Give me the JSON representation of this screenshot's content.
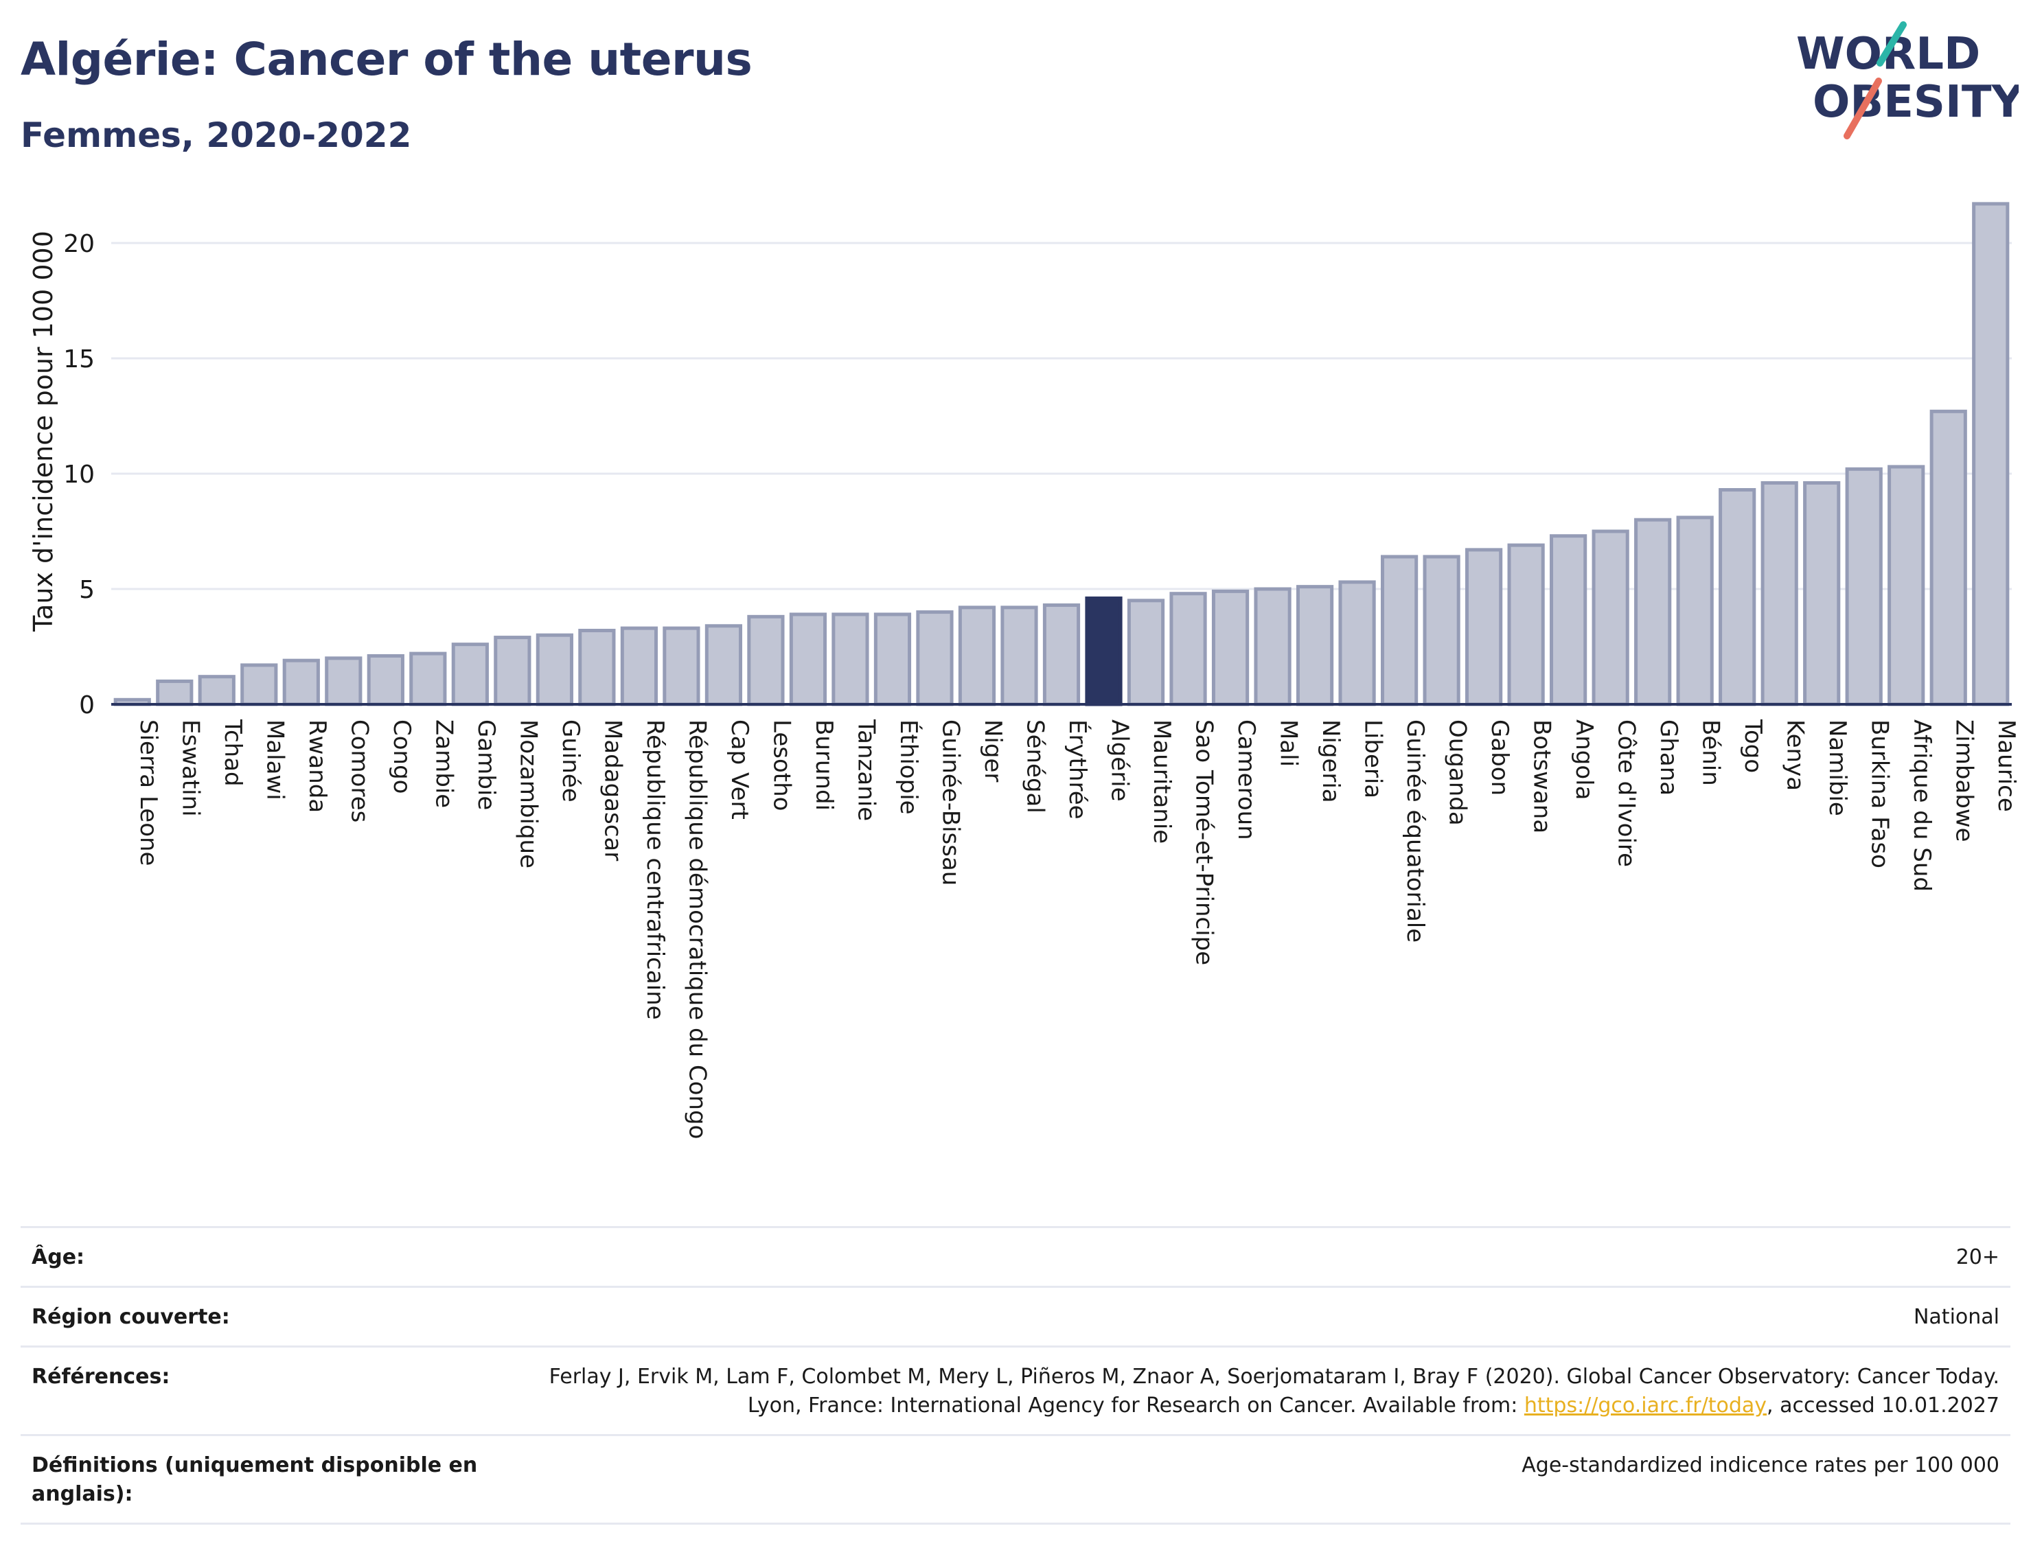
{
  "header": {
    "title": "Algérie: Cancer of the uterus",
    "subtitle": "Femmes, 2020-2022"
  },
  "logo": {
    "line1": "WORLD",
    "line2": "OBESITY",
    "colors": {
      "text": "#2a3561",
      "teal": "#2bb5a8",
      "coral": "#e8705e"
    }
  },
  "colors": {
    "bar_default": "#c1c5d4",
    "bar_default_stroke": "#959cb6",
    "bar_highlight": "#2a3561",
    "axis": "#2a3561",
    "grid": "#e6e8f0"
  },
  "chart_data": {
    "type": "bar",
    "ylabel": "Taux d'incidence pour 100 000",
    "ylim": [
      0,
      22.5
    ],
    "yticks": [
      0,
      5,
      10,
      15,
      20
    ],
    "grid": true,
    "highlight": "Algérie",
    "categories": [
      "Sierra Leone",
      "Eswatini",
      "Tchad",
      "Malawi",
      "Rwanda",
      "Comores",
      "Congo",
      "Zambie",
      "Gambie",
      "Mozambique",
      "Guinée",
      "Madagascar",
      "République centrafricaine",
      "République démocratique du Congo",
      "Cap Vert",
      "Lesotho",
      "Burundi",
      "Tanzanie",
      "Éthiopie",
      "Guinée-Bissau",
      "Niger",
      "Sénégal",
      "Érythrée",
      "Algérie",
      "Mauritanie",
      "Sao Tomé-et-Principe",
      "Cameroun",
      "Mali",
      "Nigeria",
      "Liberia",
      "Guinée équatoriale",
      "Ouganda",
      "Gabon",
      "Botswana",
      "Angola",
      "Côte d'Ivoire",
      "Ghana",
      "Bénin",
      "Togo",
      "Kenya",
      "Namibie",
      "Burkina Faso",
      "Afrique du Sud",
      "Zimbabwe",
      "Maurice"
    ],
    "values": [
      0.2,
      1.0,
      1.2,
      1.7,
      1.9,
      2.0,
      2.1,
      2.2,
      2.6,
      2.9,
      3.0,
      3.2,
      3.3,
      3.3,
      3.4,
      3.8,
      3.9,
      3.9,
      3.9,
      4.0,
      4.2,
      4.2,
      4.3,
      4.6,
      4.5,
      4.8,
      4.9,
      5.0,
      5.1,
      5.3,
      6.4,
      6.4,
      6.7,
      6.9,
      7.3,
      7.5,
      8.0,
      8.1,
      9.3,
      9.6,
      9.6,
      10.2,
      10.3,
      12.7,
      21.7
    ]
  },
  "info": {
    "rows": [
      {
        "label": "Âge:",
        "value": "20+"
      },
      {
        "label": "Région couverte:",
        "value": "National"
      },
      {
        "label": "Références:",
        "value_part1": "Ferlay J, Ervik M, Lam F, Colombet M, Mery L, Piñeros M, Znaor A, Soerjomataram I, Bray F (2020). Global Cancer Observatory: Cancer Today. Lyon, France: International Agency for Research on Cancer. Available from: ",
        "link": "https://gco.iarc.fr/today",
        "value_part2": ", accessed 10.01.2027"
      },
      {
        "label": "Définitions (uniquement disponible en anglais):",
        "value": "Age-standardized indicence rates per 100 000"
      }
    ]
  }
}
